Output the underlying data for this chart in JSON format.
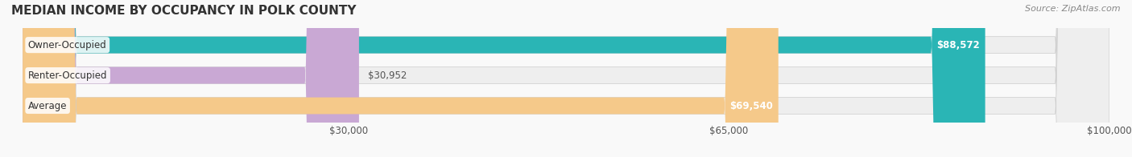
{
  "title": "MEDIAN INCOME BY OCCUPANCY IN POLK COUNTY",
  "source": "Source: ZipAtlas.com",
  "categories": [
    "Owner-Occupied",
    "Renter-Occupied",
    "Average"
  ],
  "values": [
    88572,
    30952,
    69540
  ],
  "bar_colors": [
    "#2ab5b5",
    "#c9a8d4",
    "#f5c98a"
  ],
  "bar_bg_color": "#eeeeee",
  "value_labels": [
    "$88,572",
    "$30,952",
    "$69,540"
  ],
  "xmin": 0,
  "xmax": 100000,
  "xticks": [
    30000,
    65000,
    100000
  ],
  "xtick_labels": [
    "$30,000",
    "$65,000",
    "$100,000"
  ],
  "title_fontsize": 11,
  "label_fontsize": 8.5,
  "value_fontsize": 8.5,
  "source_fontsize": 8,
  "bar_height": 0.55,
  "background_color": "#f9f9f9"
}
